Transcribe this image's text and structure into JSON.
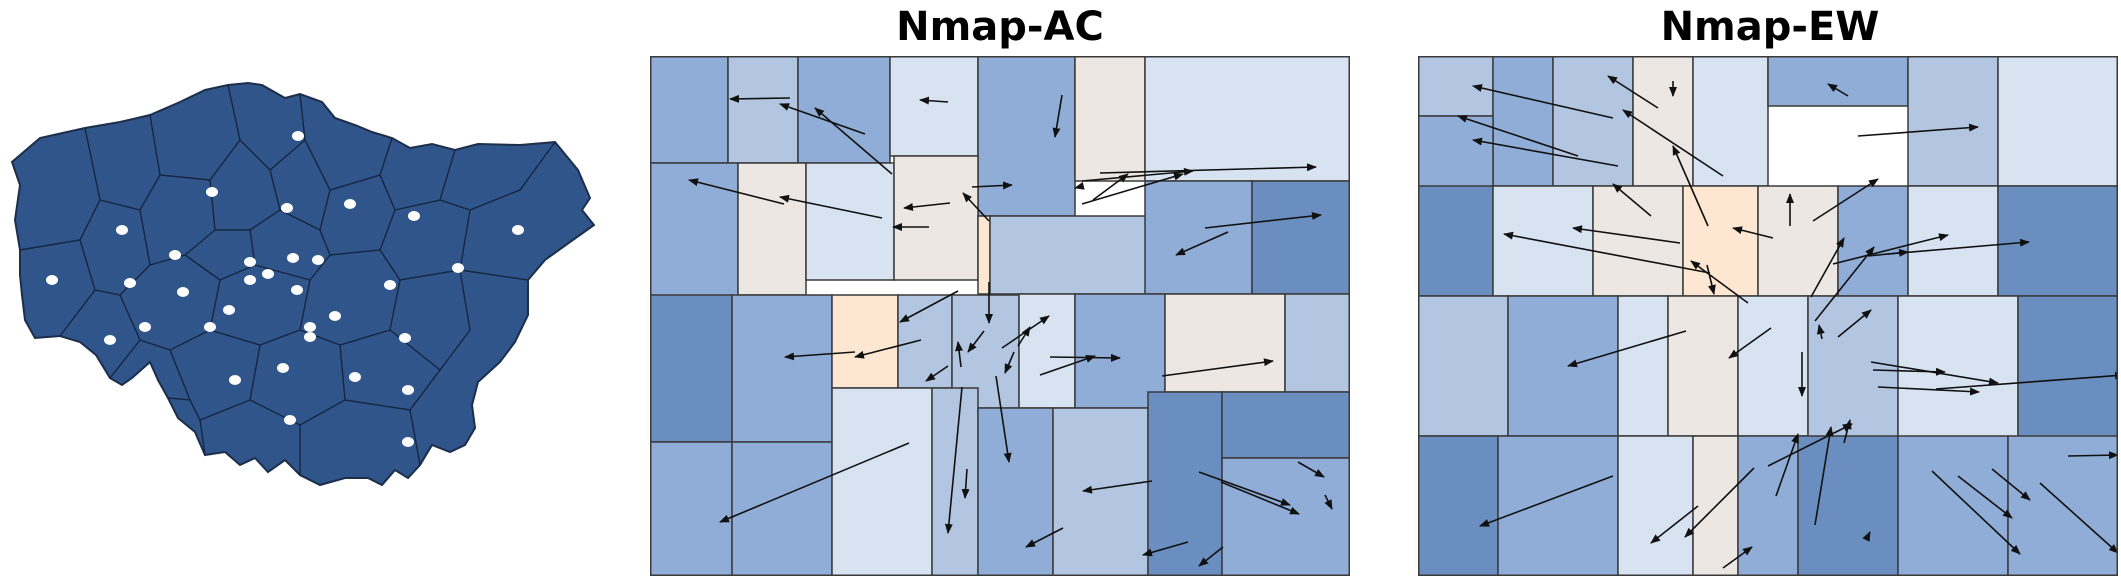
{
  "titles": {
    "nmap_ac": "Nmap-AC",
    "nmap_ew": "Nmap-EW"
  },
  "colors": {
    "map_fill": "#2f558a",
    "map_border": "#1c2e4a",
    "dot": "#ffffff",
    "arrow": "#111111",
    "cell_border": "#3a3a3a",
    "palette": [
      "#6a8ec0",
      "#8fadd6",
      "#b2c6e2",
      "#d8e3f1",
      "#ece7e2",
      "#fde6d2"
    ]
  },
  "icons": {
    "district_marker": "dot",
    "displacement": "arrow"
  }
}
